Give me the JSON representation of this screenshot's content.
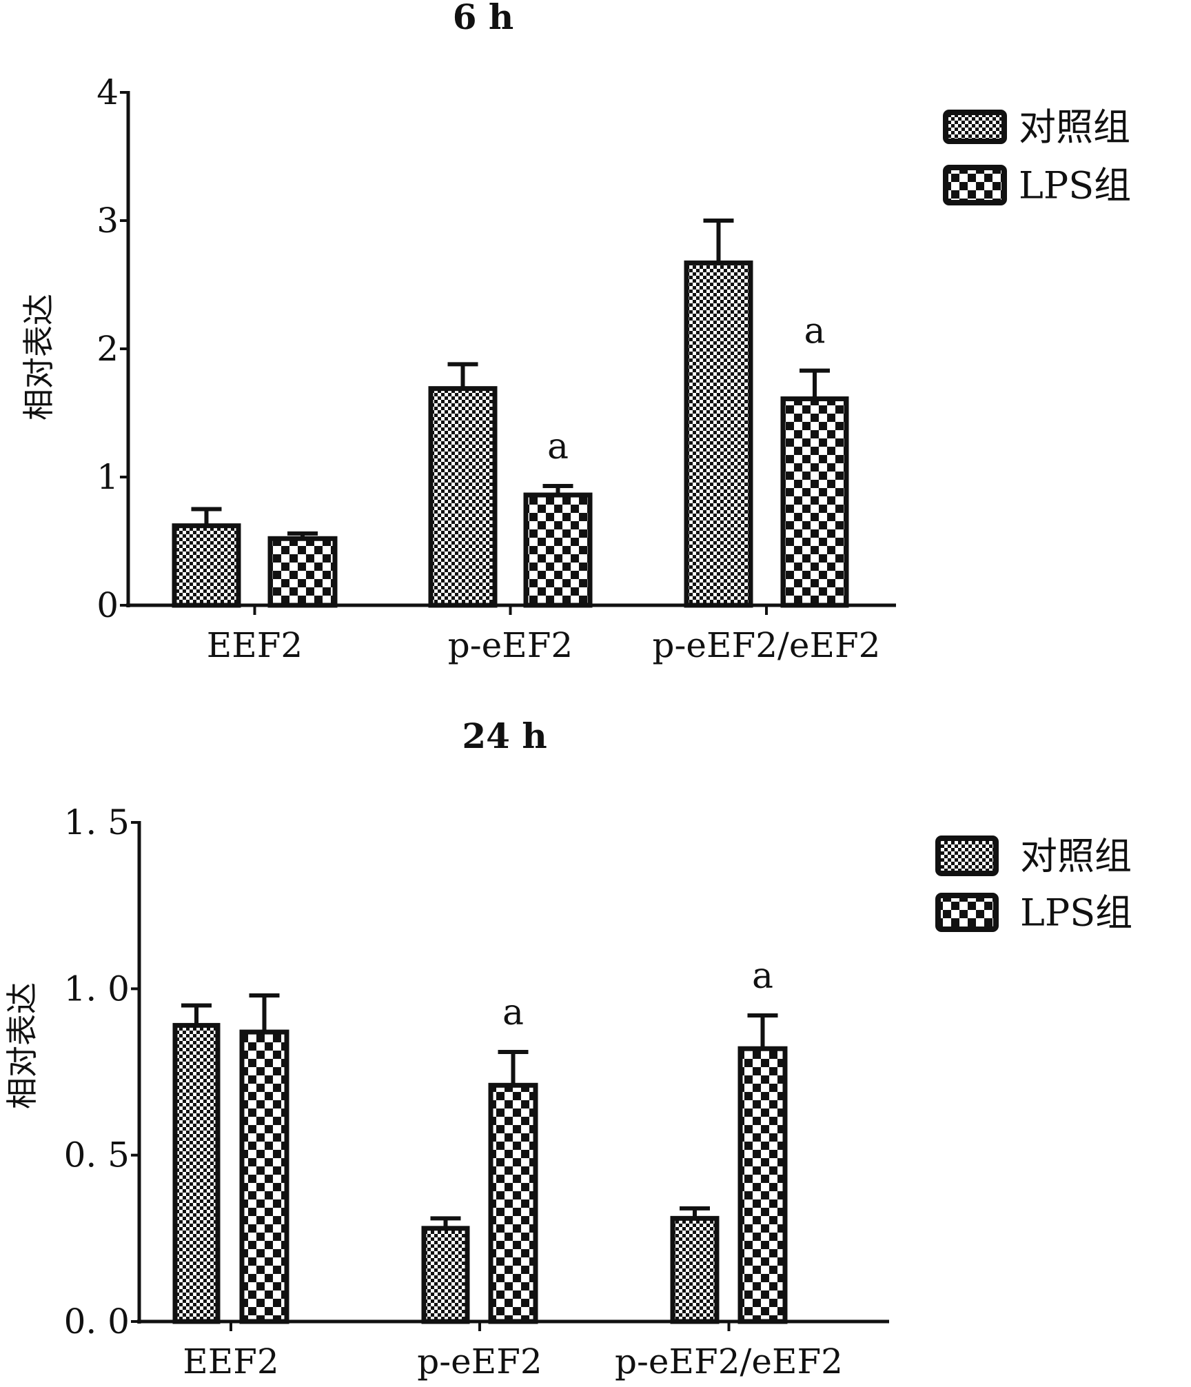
{
  "chart_data": [
    {
      "type": "bar",
      "title": "6 h",
      "xlabel": "",
      "ylabel": "相对表达",
      "ylim": [
        0,
        4
      ],
      "yticks": [
        "0",
        "1",
        "2",
        "3",
        "4"
      ],
      "ytick_values": [
        0,
        1,
        2,
        3,
        4
      ],
      "categories": [
        "EEF2",
        "p-eEF2",
        "p-eEF2/eEF2"
      ],
      "legend_position": "top-right",
      "series": [
        {
          "name": "对照组",
          "values": [
            0.62,
            1.69,
            2.67
          ],
          "errors": [
            0.13,
            0.19,
            0.33
          ],
          "annotations": [
            "",
            "",
            ""
          ]
        },
        {
          "name": "LPS组",
          "values": [
            0.52,
            0.86,
            1.61
          ],
          "errors": [
            0.04,
            0.07,
            0.22
          ],
          "annotations": [
            "",
            "a",
            "a"
          ]
        }
      ]
    },
    {
      "type": "bar",
      "title": "24 h",
      "xlabel": "",
      "ylabel": "相对表达",
      "ylim": [
        0,
        1.5
      ],
      "yticks": [
        "0. 0",
        "0. 5",
        "1. 0",
        "1. 5"
      ],
      "ytick_values": [
        0,
        0.5,
        1.0,
        1.5
      ],
      "categories": [
        "EEF2",
        "p-eEF2",
        "p-eEF2/eEF2"
      ],
      "legend_position": "top-right",
      "series": [
        {
          "name": "对照组",
          "values": [
            0.89,
            0.28,
            0.31
          ],
          "errors": [
            0.06,
            0.03,
            0.03
          ],
          "annotations": [
            "",
            "",
            ""
          ]
        },
        {
          "name": "LPS组",
          "values": [
            0.87,
            0.71,
            0.82
          ],
          "errors": [
            0.11,
            0.1,
            0.1
          ],
          "annotations": [
            "",
            "a",
            "a"
          ]
        }
      ]
    }
  ]
}
